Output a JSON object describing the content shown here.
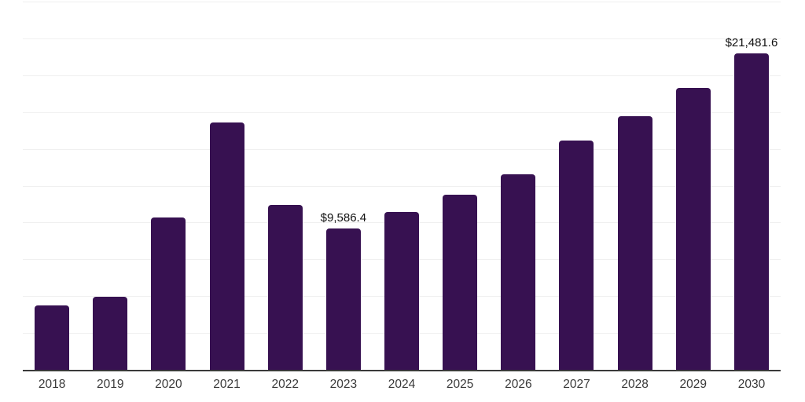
{
  "chart_data": {
    "type": "bar",
    "title": "",
    "xlabel": "",
    "ylabel": "",
    "categories": [
      "2018",
      "2019",
      "2020",
      "2021",
      "2022",
      "2023",
      "2024",
      "2025",
      "2026",
      "2027",
      "2028",
      "2029",
      "2030"
    ],
    "values": [
      4360,
      4950,
      10320,
      16810,
      11220,
      9586.4,
      10690,
      11910,
      13300,
      15590,
      17230,
      19150,
      21481.6
    ],
    "points": [
      {
        "year": "2018",
        "value": 4360,
        "label": ""
      },
      {
        "year": "2019",
        "value": 4950,
        "label": ""
      },
      {
        "year": "2020",
        "value": 10320,
        "label": ""
      },
      {
        "year": "2021",
        "value": 16810,
        "label": ""
      },
      {
        "year": "2022",
        "value": 11220,
        "label": ""
      },
      {
        "year": "2023",
        "value": 9586.4,
        "label": "$9,586.4"
      },
      {
        "year": "2024",
        "value": 10690,
        "label": ""
      },
      {
        "year": "2025",
        "value": 11910,
        "label": ""
      },
      {
        "year": "2026",
        "value": 13300,
        "label": ""
      },
      {
        "year": "2027",
        "value": 15590,
        "label": ""
      },
      {
        "year": "2028",
        "value": 17230,
        "label": ""
      },
      {
        "year": "2029",
        "value": 19150,
        "label": ""
      },
      {
        "year": "2030",
        "value": 21481.6,
        "label": "$21,481.6"
      }
    ],
    "annotations": [
      "$9,586.4",
      "$21,481.6"
    ],
    "ylim": [
      0,
      25000
    ],
    "gridline_interval": 2500,
    "grid": true,
    "legend": false,
    "colors": {
      "bar": "#371151",
      "gridline": "#f0f0f0",
      "axis_line": "#3a3a3a",
      "tick_label": "#3a3a3a",
      "value_label": "#111111",
      "background": "#ffffff"
    }
  }
}
